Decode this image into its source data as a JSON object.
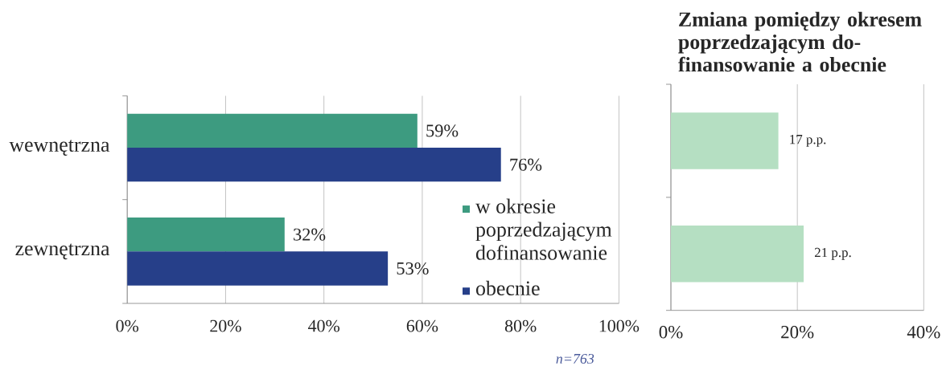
{
  "chart_data": [
    {
      "type": "bar",
      "orientation": "horizontal",
      "categories": [
        "wewnętrzna",
        "zewnętrzna"
      ],
      "series": [
        {
          "name": "w okresie poprzedzającym dofinansowanie",
          "color": "#3d9b80",
          "values": [
            59,
            32
          ],
          "value_labels": [
            "59%",
            "32%"
          ]
        },
        {
          "name": "obecnie",
          "color": "#263f89",
          "values": [
            76,
            53
          ],
          "value_labels": [
            "76%",
            "53%"
          ]
        }
      ],
      "xlim": [
        0,
        100
      ],
      "xticks": [
        {
          "value": 0,
          "label": "0%"
        },
        {
          "value": 20,
          "label": "20%"
        },
        {
          "value": 40,
          "label": "40%"
        },
        {
          "value": 60,
          "label": "60%"
        },
        {
          "value": 80,
          "label": "80%"
        },
        {
          "value": 100,
          "label": "100%"
        }
      ],
      "grid": "x",
      "legend": "bottom right",
      "annotations": [
        "n=763"
      ]
    },
    {
      "type": "bar",
      "orientation": "horizontal",
      "title": "Zmiana pomiędzy okresem poprzedzającym do-finansowanie a obecnie",
      "categories": [
        null,
        null
      ],
      "values": [
        17,
        21
      ],
      "value_labels": [
        "17 p.p.",
        "21 p.p."
      ],
      "color": "#b5dfc2",
      "xlim": [
        0,
        40
      ],
      "xticks": [
        {
          "value": 0,
          "label": "0%"
        },
        {
          "value": 20,
          "label": "20%"
        },
        {
          "value": 40,
          "label": "40%"
        }
      ],
      "grid": "x"
    }
  ]
}
